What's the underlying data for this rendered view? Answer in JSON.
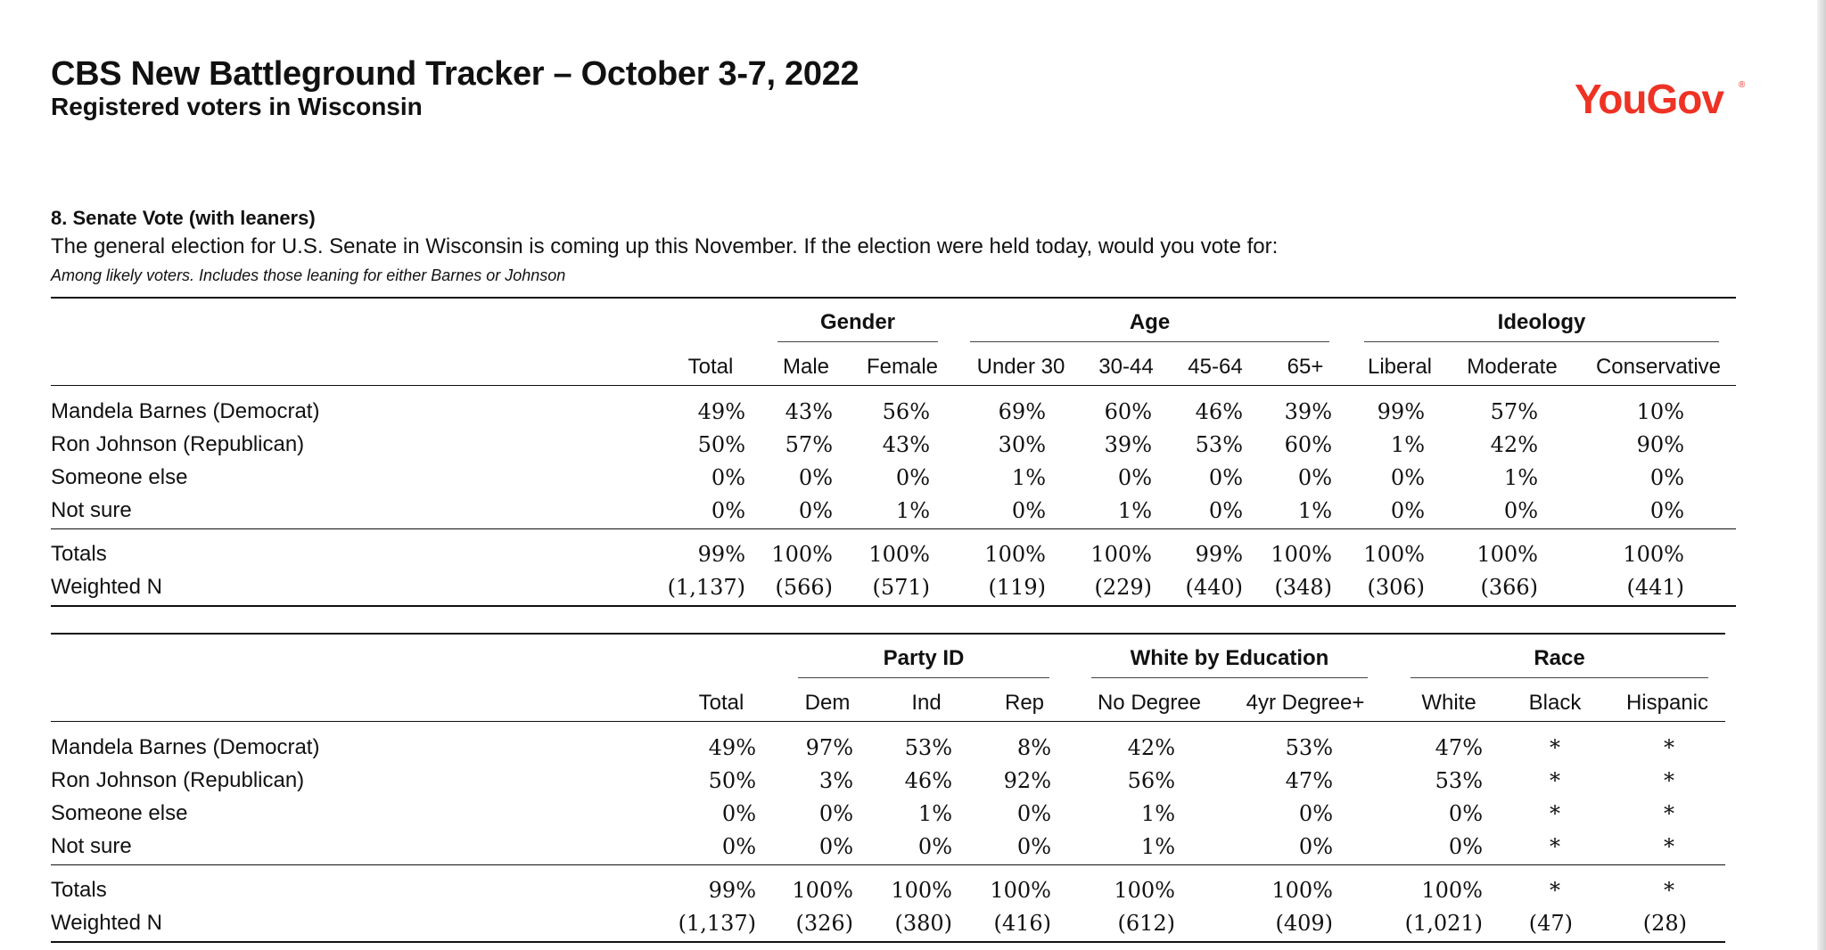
{
  "header": {
    "title": "CBS New Battleground Tracker – October 3-7, 2022",
    "subtitle": "Registered voters in Wisconsin",
    "logo": "YouGov",
    "logo_mark": "®"
  },
  "question": {
    "title": "8.  Senate Vote (with leaners)",
    "text": "The general election for U.S. Senate in Wisconsin is coming up this November.  If the election were held today, would you vote for:",
    "note": "Among likely voters.  Includes those leaning for either Barnes or Johnson"
  },
  "row_labels": [
    "Mandela Barnes (Democrat)",
    "Ron Johnson (Republican)",
    "Someone else",
    "Not sure",
    "Totals",
    "Weighted N"
  ],
  "table1": {
    "groups": [
      "Gender",
      "Age",
      "Ideology"
    ],
    "columns": [
      "Total",
      "Male",
      "Female",
      "Under 30",
      "30-44",
      "45-64",
      "65+",
      "Liberal",
      "Moderate",
      "Conservative"
    ],
    "rows": [
      [
        "49%",
        "43%",
        "56%",
        "69%",
        "60%",
        "46%",
        "39%",
        "99%",
        "57%",
        "10%"
      ],
      [
        "50%",
        "57%",
        "43%",
        "30%",
        "39%",
        "53%",
        "60%",
        "1%",
        "42%",
        "90%"
      ],
      [
        "0%",
        "0%",
        "0%",
        "1%",
        "0%",
        "0%",
        "0%",
        "0%",
        "1%",
        "0%"
      ],
      [
        "0%",
        "0%",
        "1%",
        "0%",
        "1%",
        "0%",
        "1%",
        "0%",
        "0%",
        "0%"
      ],
      [
        "99%",
        "100%",
        "100%",
        "100%",
        "100%",
        "99%",
        "100%",
        "100%",
        "100%",
        "100%"
      ],
      [
        "(1,137)",
        "(566)",
        "(571)",
        "(119)",
        "(229)",
        "(440)",
        "(348)",
        "(306)",
        "(366)",
        "(441)"
      ]
    ]
  },
  "table2": {
    "groups": [
      "Party ID",
      "White by Education",
      "Race"
    ],
    "columns": [
      "Total",
      "Dem",
      "Ind",
      "Rep",
      "No Degree",
      "4yr Degree+",
      "White",
      "Black",
      "Hispanic"
    ],
    "rows": [
      [
        "49%",
        "97%",
        "53%",
        "8%",
        "42%",
        "53%",
        "47%",
        "*",
        "*"
      ],
      [
        "50%",
        "3%",
        "46%",
        "92%",
        "56%",
        "47%",
        "53%",
        "*",
        "*"
      ],
      [
        "0%",
        "0%",
        "1%",
        "0%",
        "1%",
        "0%",
        "0%",
        "*",
        "*"
      ],
      [
        "0%",
        "0%",
        "0%",
        "0%",
        "1%",
        "0%",
        "0%",
        "*",
        "*"
      ],
      [
        "99%",
        "100%",
        "100%",
        "100%",
        "100%",
        "100%",
        "100%",
        "*",
        "*"
      ],
      [
        "(1,137)",
        "(326)",
        "(380)",
        "(416)",
        "(612)",
        "(409)",
        "(1,021)",
        "(47)",
        "(28)"
      ]
    ]
  }
}
